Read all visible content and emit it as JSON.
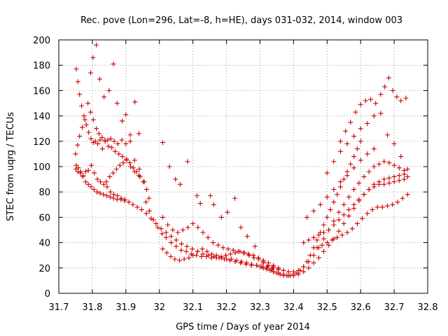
{
  "chart_data": {
    "type": "scatter",
    "title": "Rec. pove (Lon=296, Lat=-8, h=HE), days 031-032, 2014, window 003",
    "xlabel": "GPS time / Days of year 2014",
    "ylabel": "STEC from uqrg / TECUs",
    "xlim": [
      31.7,
      32.8
    ],
    "ylim": [
      0,
      200
    ],
    "xticks": [
      "31.7",
      "31.8",
      "31.9",
      "32",
      "32.1",
      "32.2",
      "32.3",
      "32.4",
      "32.5",
      "32.6",
      "32.7",
      "32.8"
    ],
    "yticks": [
      "0",
      "20",
      "40",
      "60",
      "80",
      "100",
      "120",
      "140",
      "160",
      "180",
      "200"
    ],
    "grid": true,
    "legend": "none",
    "marker": "plus",
    "color": "#cc0000",
    "series": [
      {
        "x": [
          31.752,
          31.757,
          31.762,
          31.768,
          31.775,
          31.782,
          31.789,
          31.796,
          31.803,
          31.809,
          31.816,
          31.823,
          31.83,
          31.838,
          31.846,
          31.855,
          31.865,
          31.876,
          31.888,
          31.9,
          31.913,
          31.926,
          31.94,
          31.955,
          31.969
        ],
        "y": [
          177,
          167,
          157,
          148,
          140,
          133,
          127,
          122,
          119,
          120,
          118,
          121,
          114,
          121,
          121,
          122,
          120,
          118,
          121,
          118,
          120,
          105,
          98,
          88,
          75
        ]
      },
      {
        "x": [
          31.75,
          31.756,
          31.762,
          31.77,
          31.778,
          31.787,
          31.795,
          31.803,
          31.812,
          31.82,
          31.829,
          31.838,
          31.848,
          31.858,
          31.868,
          31.879,
          31.89,
          31.902,
          31.914,
          31.926,
          31.939
        ],
        "y": [
          110,
          117,
          124,
          131,
          137,
          150,
          143,
          137,
          130,
          126,
          123,
          120,
          116,
          115,
          112,
          110,
          108,
          105,
          100,
          96,
          93
        ]
      },
      {
        "x": [
          31.751,
          31.757,
          31.764,
          31.772,
          31.78,
          31.788,
          31.797,
          31.806,
          31.815,
          31.824,
          31.834,
          31.844,
          31.854,
          31.864,
          31.875,
          31.886,
          31.897,
          31.909,
          31.921,
          31.934,
          31.947,
          31.961,
          31.975,
          31.99,
          32.005,
          32.02,
          32.035,
          32.05,
          32.066,
          32.082,
          32.098,
          32.114,
          32.13,
          32.146,
          32.162,
          32.178,
          32.194,
          32.21,
          32.226,
          32.242,
          32.258,
          32.274,
          32.29,
          32.306,
          32.322,
          32.338,
          32.354,
          32.37
        ],
        "y": [
          98,
          96,
          95,
          93,
          96,
          97,
          101,
          95,
          90,
          88,
          86,
          84,
          80,
          78,
          77,
          75,
          74,
          72,
          70,
          68,
          66,
          63,
          59,
          55,
          51,
          48,
          45,
          42,
          39,
          37,
          35,
          33,
          31,
          30,
          29,
          28,
          27,
          26,
          25,
          24,
          23,
          22,
          22,
          21,
          21,
          20,
          19,
          18
        ]
      },
      {
        "x": [
          31.752,
          31.758,
          31.765,
          31.772,
          31.78,
          31.788,
          31.796,
          31.805,
          31.814,
          31.823,
          31.833,
          31.843,
          31.853,
          31.863,
          31.874,
          31.885,
          31.896
        ],
        "y": [
          101,
          99,
          96,
          92,
          88,
          86,
          84,
          82,
          80,
          79,
          78,
          77,
          76,
          75,
          74,
          74,
          73
        ]
      },
      {
        "x": [
          31.795,
          31.802,
          31.812,
          31.822,
          31.835,
          31.85,
          31.863,
          31.874,
          31.889,
          31.9,
          31.913,
          31.927,
          31.939
        ],
        "y": [
          174,
          186,
          196,
          169,
          155,
          160,
          181,
          150,
          136,
          141,
          125,
          151,
          126
        ]
      },
      {
        "x": [
          31.842,
          31.852,
          31.862,
          31.872,
          31.882,
          31.892,
          31.902,
          31.912,
          31.922,
          31.932,
          31.942,
          31.952,
          31.962
        ],
        "y": [
          88,
          92,
          95,
          98,
          101,
          103,
          106,
          103,
          99,
          96,
          92,
          88,
          82
        ]
      },
      {
        "x": [
          31.96,
          31.97,
          31.982,
          31.995,
          32.008,
          32.02,
          32.035,
          32.05,
          32.065,
          32.08,
          32.095,
          32.11,
          32.125,
          32.14,
          32.155,
          32.17,
          32.185,
          32.2,
          32.215,
          32.23,
          32.245,
          32.26,
          32.275,
          32.29,
          32.305,
          32.32,
          32.335
        ],
        "y": [
          72,
          65,
          58,
          52,
          47,
          44,
          40,
          37,
          34,
          33,
          31,
          30,
          29,
          29,
          28,
          28,
          28,
          27,
          27,
          26,
          25,
          24,
          23,
          22,
          21,
          20,
          19
        ]
      },
      {
        "x": [
          32.01,
          32.025,
          32.04,
          32.055,
          32.07,
          32.085,
          32.1,
          32.115,
          32.13,
          32.145,
          32.16,
          32.175,
          32.19,
          32.205,
          32.22,
          32.235,
          32.25,
          32.265,
          32.28,
          32.295,
          32.31,
          32.325,
          32.34,
          32.355
        ],
        "y": [
          60,
          54,
          50,
          48,
          50,
          52,
          55,
          52,
          48,
          44,
          40,
          38,
          36,
          35,
          34,
          33,
          32,
          31,
          30,
          28,
          26,
          24,
          22,
          20
        ]
      },
      {
        "x": [
          32.01,
          32.022,
          32.034,
          32.046,
          32.06,
          32.074,
          32.088,
          32.1,
          32.114,
          32.128,
          32.142,
          32.156,
          32.17,
          32.184,
          32.198,
          32.212,
          32.226,
          32.24,
          32.254,
          32.268,
          32.282,
          32.296,
          32.31
        ],
        "y": [
          35,
          32,
          29,
          27,
          26,
          27,
          28,
          30,
          33,
          35,
          33,
          31,
          30,
          29,
          30,
          31,
          32,
          33,
          32,
          30,
          28,
          27,
          25
        ]
      },
      {
        "x": [
          32.01,
          32.03,
          32.048,
          32.062,
          32.084,
          32.112,
          32.122,
          32.152,
          32.162,
          32.185,
          32.203,
          32.225,
          32.243,
          32.262,
          32.285
        ],
        "y": [
          119,
          100,
          90,
          86,
          104,
          77,
          71,
          77,
          70,
          60,
          64,
          75,
          52,
          45,
          37
        ]
      },
      {
        "x": [
          32.3,
          32.31,
          32.32,
          32.33,
          32.34,
          32.35,
          32.36,
          32.37,
          32.38,
          32.39,
          32.4,
          32.41,
          32.42,
          32.43,
          32.44,
          32.45,
          32.46,
          32.47,
          32.48,
          32.49,
          32.5,
          32.51,
          32.52,
          32.53,
          32.54,
          32.55,
          32.56,
          32.57,
          32.58,
          32.59,
          32.6
        ],
        "y": [
          21,
          20,
          19,
          18,
          17,
          16,
          15,
          14,
          14,
          14,
          15,
          16,
          18,
          21,
          25,
          30,
          36,
          42,
          48,
          54,
          60,
          66,
          72,
          78,
          84,
          90,
          96,
          102,
          108,
          114,
          120
        ]
      },
      {
        "x": [
          32.31,
          32.325,
          32.34,
          32.355,
          32.37,
          32.385,
          32.4,
          32.415,
          32.43,
          32.445,
          32.46,
          32.475,
          32.49,
          32.505,
          32.52,
          32.535,
          32.55,
          32.565,
          32.58,
          32.595,
          32.61,
          32.625,
          32.64,
          32.655,
          32.67,
          32.685,
          32.7,
          32.715,
          32.73
        ],
        "y": [
          24,
          22,
          21,
          19,
          18,
          17,
          17,
          18,
          21,
          25,
          30,
          36,
          43,
          50,
          57,
          64,
          70,
          76,
          82,
          87,
          92,
          96,
          100,
          102,
          104,
          103,
          101,
          99,
          97
        ]
      },
      {
        "x": [
          32.34,
          32.355,
          32.37,
          32.385,
          32.4,
          32.415,
          32.43,
          32.445,
          32.46,
          32.475,
          32.49,
          32.505,
          32.52,
          32.535,
          32.55,
          32.565,
          32.58,
          32.595,
          32.61,
          32.625,
          32.64,
          32.655,
          32.67,
          32.685,
          32.7,
          32.715,
          32.73
        ],
        "y": [
          17,
          16,
          15,
          14,
          14,
          15,
          17,
          20,
          24,
          28,
          33,
          38,
          43,
          49,
          55,
          61,
          67,
          73,
          78,
          82,
          86,
          88,
          90,
          91,
          92,
          93,
          94
        ]
      },
      {
        "x": [
          32.43,
          32.445,
          32.46,
          32.475,
          32.49,
          32.505,
          32.52,
          32.535,
          32.55,
          32.565,
          32.58,
          32.595,
          32.61,
          32.625,
          32.64,
          32.655,
          32.67,
          32.685,
          32.7,
          32.715,
          32.73,
          32.74
        ],
        "y": [
          40,
          42,
          44,
          46,
          48,
          50,
          54,
          58,
          62,
          66,
          70,
          74,
          78,
          82,
          84,
          86,
          86,
          87,
          88,
          89,
          90,
          92
        ]
      },
      {
        "x": [
          32.47,
          32.485,
          32.5,
          32.515,
          32.53,
          32.545,
          32.56,
          32.575,
          32.59,
          32.605,
          32.62,
          32.635,
          32.65,
          32.665,
          32.68,
          32.695,
          32.71,
          32.725,
          32.74
        ],
        "y": [
          36,
          38,
          40,
          42,
          44,
          46,
          48,
          51,
          55,
          59,
          63,
          66,
          68,
          68,
          69,
          70,
          72,
          75,
          78
        ]
      },
      {
        "x": [
          32.54,
          32.555,
          32.57,
          32.585,
          32.6,
          32.615,
          32.63,
          32.645,
          32.66,
          32.672,
          32.684,
          32.696,
          32.708,
          32.72,
          32.735
        ],
        "y": [
          120,
          128,
          135,
          143,
          149,
          152,
          153,
          150,
          157,
          163,
          170,
          160,
          155,
          152,
          154
        ]
      },
      {
        "x": [
          32.5,
          32.52,
          32.54,
          32.56,
          32.58,
          32.6,
          32.62,
          32.64,
          32.66,
          32.68,
          32.7,
          32.72,
          32.74
        ],
        "y": [
          95,
          104,
          112,
          118,
          124,
          130,
          134,
          140,
          142,
          125,
          118,
          108,
          98
        ]
      },
      {
        "x": [
          32.44,
          32.46,
          32.48,
          32.5,
          32.52,
          32.54,
          32.56,
          32.58,
          32.6,
          32.62,
          32.64
        ],
        "y": [
          60,
          65,
          70,
          76,
          82,
          88,
          93,
          99,
          105,
          110,
          114
        ]
      }
    ]
  }
}
